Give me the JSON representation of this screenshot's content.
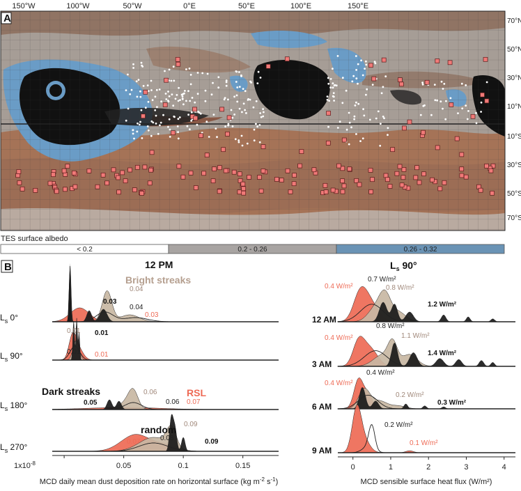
{
  "panel_a": {
    "tag": "A",
    "lon_labels": [
      "150°W",
      "100°W",
      "50°W",
      "0°E",
      "50°E",
      "100°E",
      "150°E"
    ],
    "lat_labels": [
      "70°N",
      "50°N",
      "30°N",
      "10°N",
      "10°S",
      "30°S",
      "50°S",
      "70°S"
    ]
  },
  "albedo": {
    "title": "TES surface albedo",
    "bins": [
      {
        "label": "< 0.2",
        "color": "#ffffff"
      },
      {
        "label": "0.2 - 0.26",
        "color": "#a8a4a2"
      },
      {
        "label": "0.26 - 0.32",
        "color": "#6a93b5"
      }
    ]
  },
  "panel_b": {
    "tag": "B",
    "colors": {
      "rsl": "#ee6a55",
      "bright": "#c8b7a3",
      "dark": "#1a1a1a",
      "random": "#ffffff"
    },
    "left": {
      "title": "12 PM",
      "rows": [
        "0°",
        "90°",
        "180°",
        "270°"
      ],
      "row_prefix": "L",
      "row_sub": "s",
      "x_ticks": [
        "0",
        "0.05",
        "0.1",
        "0.15"
      ],
      "x_prefix": "1x10",
      "x_prefix_exp": "-8",
      "xlabel": "MCD daily mean dust deposition rate on horizontal surface (kg m",
      "xlabel_exp": "-2",
      "xlabel_tail": " s",
      "xlabel_exp2": "-1",
      "xlabel_end": ")",
      "labels": {
        "bright_streaks": "Bright streaks",
        "dark_streaks": "Dark streaks",
        "rsl": "RSL",
        "random": "random"
      },
      "annotations": [
        {
          "row": 0,
          "text": "0.03",
          "cls": "dark"
        },
        {
          "row": 0,
          "text": "0.04",
          "cls": "bright"
        },
        {
          "row": 0,
          "text": "0.04",
          "cls": "random"
        },
        {
          "row": 0,
          "text": "0.03",
          "cls": "rsl"
        },
        {
          "row": 1,
          "text": "0.01",
          "cls": "bright"
        },
        {
          "row": 1,
          "text": "0.01",
          "cls": "dark"
        },
        {
          "row": 1,
          "text": "0.01",
          "cls": "random"
        },
        {
          "row": 1,
          "text": "0.01",
          "cls": "rsl"
        },
        {
          "row": 2,
          "text": "0.05",
          "cls": "dark"
        },
        {
          "row": 2,
          "text": "0.06",
          "cls": "bright"
        },
        {
          "row": 2,
          "text": "0.06",
          "cls": "random"
        },
        {
          "row": 2,
          "text": "0.07",
          "cls": "rsl"
        },
        {
          "row": 3,
          "text": "0.07",
          "cls": "rsl"
        },
        {
          "row": 3,
          "text": "0.08",
          "cls": "random"
        },
        {
          "row": 3,
          "text": "0.09",
          "cls": "bright"
        },
        {
          "row": 3,
          "text": "0.09",
          "cls": "dark"
        }
      ]
    },
    "right": {
      "title_main": "L",
      "title_sub": "s",
      "title_tail": " 90°",
      "rows": [
        "12 AM",
        "3 AM",
        "6 AM",
        "9 AM"
      ],
      "x_ticks": [
        "0",
        "1",
        "2",
        "3",
        "4"
      ],
      "xlabel": "MCD sensible surface heat flux (W/m²)",
      "annotations": [
        {
          "row": 0,
          "text": "0.4 W/m²",
          "cls": "rsl"
        },
        {
          "row": 0,
          "text": "0.7 W/m²",
          "cls": "random"
        },
        {
          "row": 0,
          "text": "0.8 W/m²",
          "cls": "bright"
        },
        {
          "row": 0,
          "text": "1.2 W/m²",
          "cls": "dark"
        },
        {
          "row": 1,
          "text": "0.4 W/m²",
          "cls": "rsl"
        },
        {
          "row": 1,
          "text": "0.8 W/m²",
          "cls": "random"
        },
        {
          "row": 1,
          "text": "1.1 W/m²",
          "cls": "bright"
        },
        {
          "row": 1,
          "text": "1.4 W/m²",
          "cls": "dark"
        },
        {
          "row": 2,
          "text": "0.4 W/m²",
          "cls": "rsl"
        },
        {
          "row": 2,
          "text": "0.4 W/m²",
          "cls": "random"
        },
        {
          "row": 2,
          "text": "0.2 W/m²",
          "cls": "bright"
        },
        {
          "row": 2,
          "text": "0.3 W/m²",
          "cls": "dark"
        },
        {
          "row": 3,
          "text": "0.2 W/m²",
          "cls": "random"
        },
        {
          "row": 3,
          "text": "0.1 W/m²",
          "cls": "rsl"
        }
      ]
    }
  },
  "chart_data": [
    {
      "type": "area",
      "title": "12 PM",
      "xlabel": "MCD daily mean dust deposition rate on horizontal surface (kg m-2 s-1)",
      "x_scale_note": "1x10-8",
      "xlim": [
        -0.01,
        0.18
      ],
      "series": [
        {
          "name": "RSL",
          "rows": {
            "0°": 0.03,
            "90°": 0.01,
            "180°": 0.07,
            "270°": 0.07
          }
        },
        {
          "name": "Bright streaks",
          "rows": {
            "0°": 0.04,
            "90°": 0.01,
            "180°": 0.06,
            "270°": 0.09
          }
        },
        {
          "name": "Dark streaks",
          "rows": {
            "0°": 0.03,
            "90°": 0.01,
            "180°": 0.05,
            "270°": 0.09
          }
        },
        {
          "name": "random",
          "rows": {
            "0°": 0.04,
            "90°": 0.01,
            "180°": 0.06,
            "270°": 0.08
          }
        }
      ]
    },
    {
      "type": "area",
      "title": "Ls 90°",
      "xlabel": "MCD sensible surface heat flux (W/m²)",
      "xlim": [
        -0.4,
        4.3
      ],
      "series": [
        {
          "rows": {
            "12 AM": 0.4,
            "3 AM": 0.4,
            "6 AM": 0.4,
            "9 AM": 0.1
          }
        },
        {
          "rows": {
            "12 AM": 0.8,
            "3 AM": 1.1,
            "6 AM": 0.2
          }
        },
        {
          "rows": {
            "12 AM": 1.2,
            "3 AM": 1.4,
            "6 AM": 0.3
          }
        },
        {
          "rows": {
            "12 AM": 0.7,
            "3 AM": 0.8,
            "6 AM": 0.4,
            "9 AM": 0.2
          }
        }
      ]
    }
  ]
}
